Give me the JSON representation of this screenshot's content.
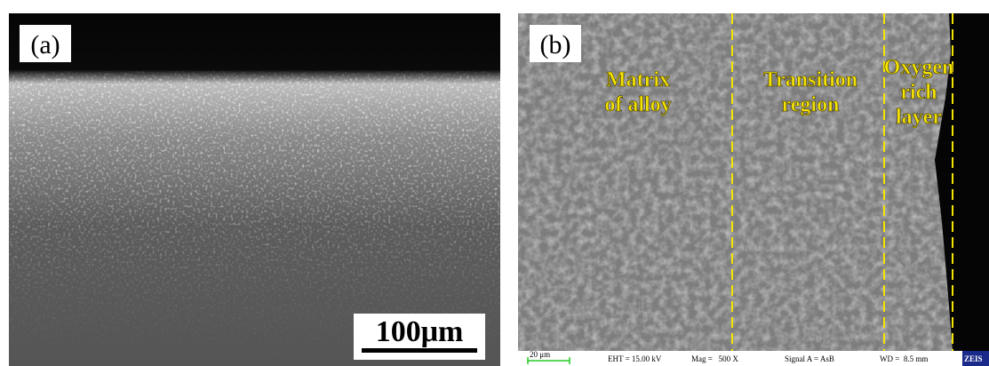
{
  "panels": [
    {
      "label": "(a)",
      "scale_bar": "100μm"
    },
    {
      "label": "(b)",
      "regions": [
        {
          "lines": [
            "Matrix",
            "of alloy"
          ]
        },
        {
          "lines": [
            "Transition",
            "region"
          ]
        },
        {
          "lines": [
            "Oxygen",
            "rich",
            "layer"
          ]
        }
      ],
      "info_bar": {
        "scale": "20 μm",
        "eht": "EHT = 15.00 kV",
        "mag": "Mag =   500 X",
        "signal": "Signal A = AsB",
        "wd": "WD =  8.5 mm",
        "logo": "ZEIS"
      }
    }
  ]
}
